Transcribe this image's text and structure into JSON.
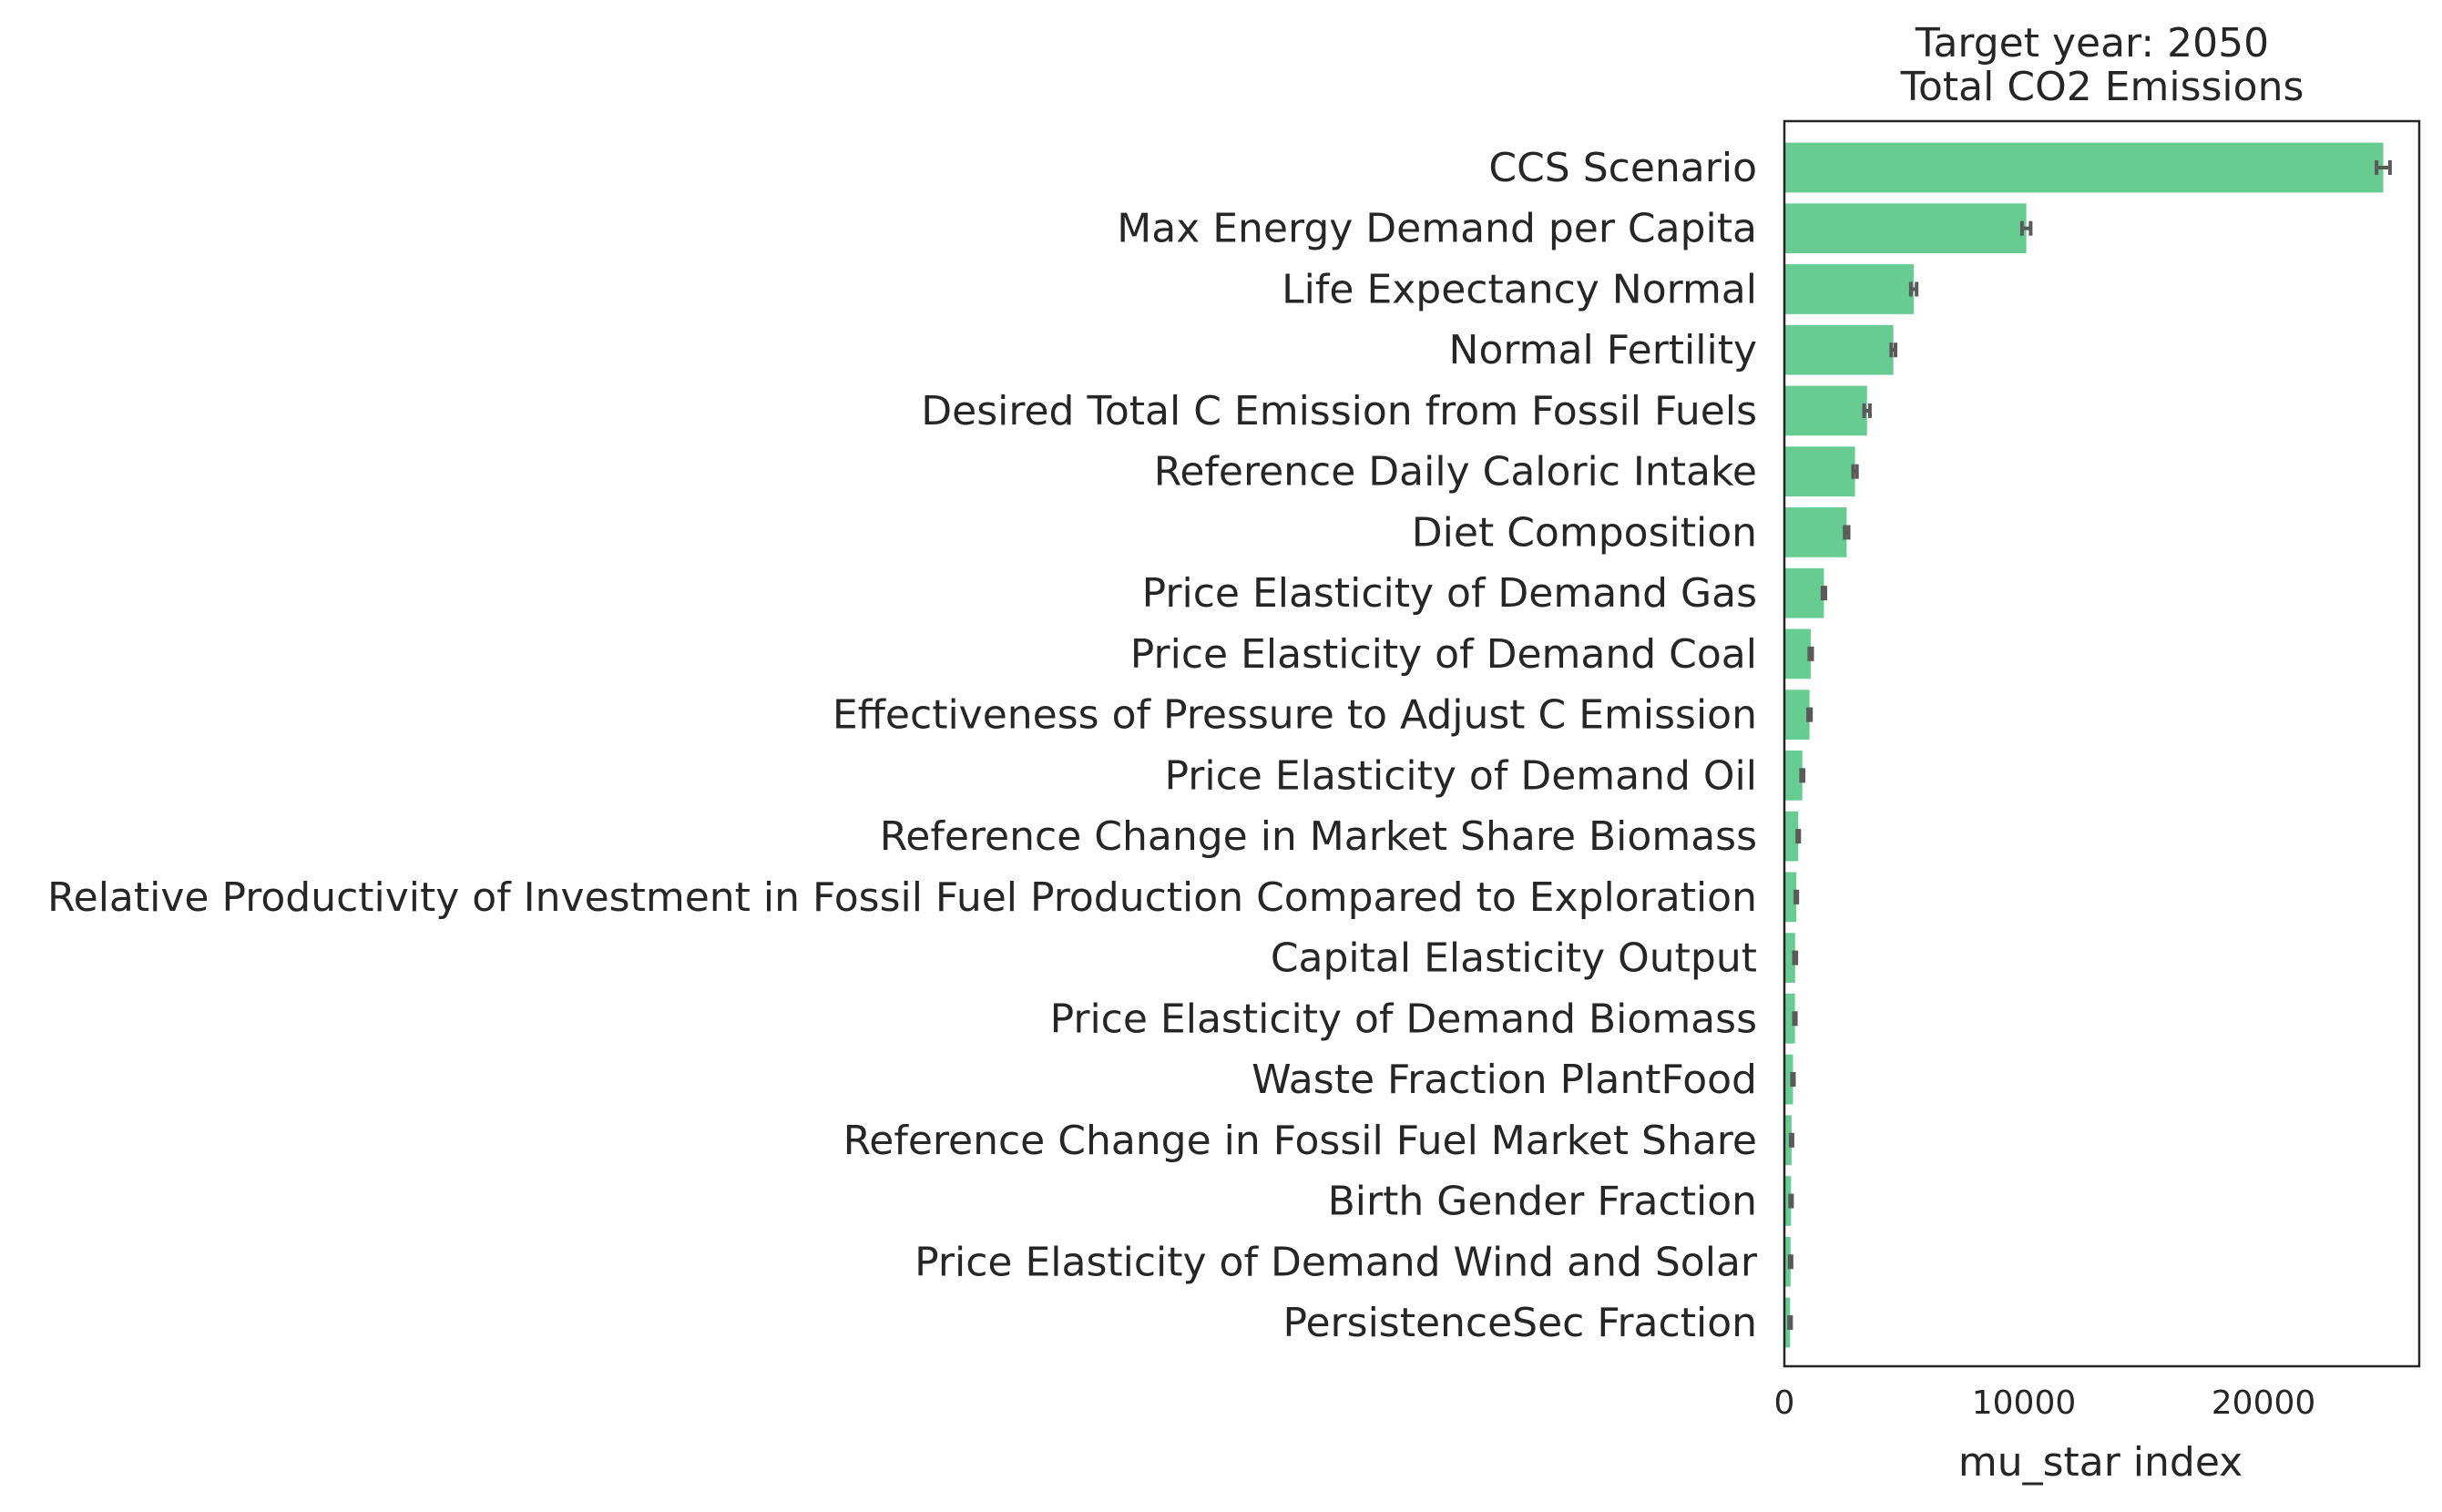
{
  "chart_data": {
    "type": "bar",
    "orientation": "horizontal",
    "title_line1": "Target year: 2050",
    "title_line2": "Total CO2 Emissions",
    "xlabel": "mu_star index",
    "ylabel": "",
    "xlim": [
      0,
      26500
    ],
    "xticks": [
      0,
      10000,
      20000
    ],
    "xtick_labels": [
      "0",
      "10000",
      "20000"
    ],
    "grid": false,
    "bar_color": "#66cc91",
    "errorbar_color": "#5a5a5a",
    "categories": [
      "CCS Scenario",
      "Max Energy Demand per Capita",
      "Life Expectancy Normal",
      "Normal Fertility",
      "Desired Total C Emission from Fossil Fuels",
      "Reference Daily Caloric Intake",
      "Diet Composition",
      "Price Elasticity of Demand Gas",
      "Price Elasticity of Demand Coal",
      "Effectiveness of Pressure to Adjust C Emission",
      "Price Elasticity of Demand Oil",
      "Reference Change in Market Share Biomass",
      "Relative Productivity of Investment in Fossil Fuel Production Compared to Exploration",
      "Capital Elasticity Output",
      "Price Elasticity of Demand Biomass",
      "Waste Fraction PlantFood",
      "Reference Change in Fossil Fuel Market Share",
      "Birth Gender Fraction",
      "Price Elasticity of Demand Wind and Solar",
      "PersistenceSec Fraction"
    ],
    "values": [
      25000,
      10100,
      5400,
      4550,
      3450,
      2950,
      2600,
      1650,
      1100,
      1050,
      750,
      580,
      500,
      450,
      440,
      360,
      300,
      280,
      260,
      240
    ],
    "errors": [
      280,
      180,
      120,
      90,
      120,
      80,
      80,
      60,
      60,
      60,
      50,
      40,
      40,
      50,
      40,
      40,
      40,
      40,
      40,
      40
    ]
  }
}
